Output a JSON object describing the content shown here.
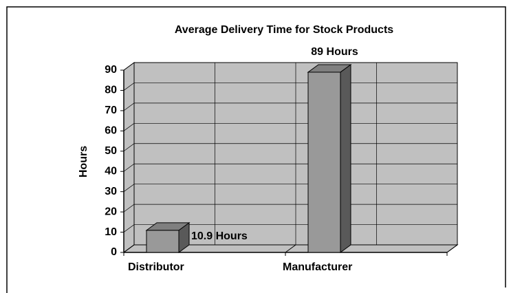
{
  "chart_data": {
    "type": "bar3d",
    "title": "Average Delivery Time for Stock Products",
    "y_label": "Hours",
    "categories": [
      "Distributor",
      "Manufacturer"
    ],
    "values": [
      10.9,
      89
    ],
    "value_labels": [
      "10.9 Hours",
      "89 Hours"
    ],
    "color": "#999999",
    "ylim": [
      0,
      90
    ],
    "yticks": [
      0,
      10,
      20,
      30,
      40,
      50,
      60,
      70,
      80,
      90
    ],
    "grid": true
  }
}
